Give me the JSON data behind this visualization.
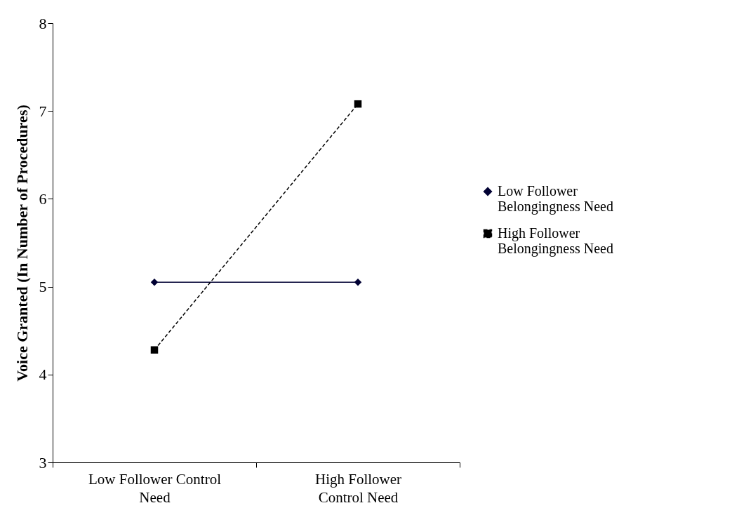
{
  "chart_data": {
    "type": "line",
    "ylabel": "Voice Granted (In Number of Procedures)",
    "categories": [
      "Low Follower Control Need",
      "High Follower Control Need"
    ],
    "series": [
      {
        "name": "Low Follower Belongingness Need",
        "color": "#000033",
        "values": [
          5.05,
          5.05
        ],
        "marker": "diamond",
        "line_style": "solid"
      },
      {
        "name": "High Follower Belongingness Need",
        "color": "#000000",
        "values": [
          4.28,
          7.08
        ],
        "marker": "square",
        "line_style": "dashed"
      }
    ],
    "ylim": [
      3,
      8
    ],
    "yticks": [
      3,
      4,
      5,
      6,
      7,
      8
    ],
    "grid": false,
    "legend": "right"
  }
}
